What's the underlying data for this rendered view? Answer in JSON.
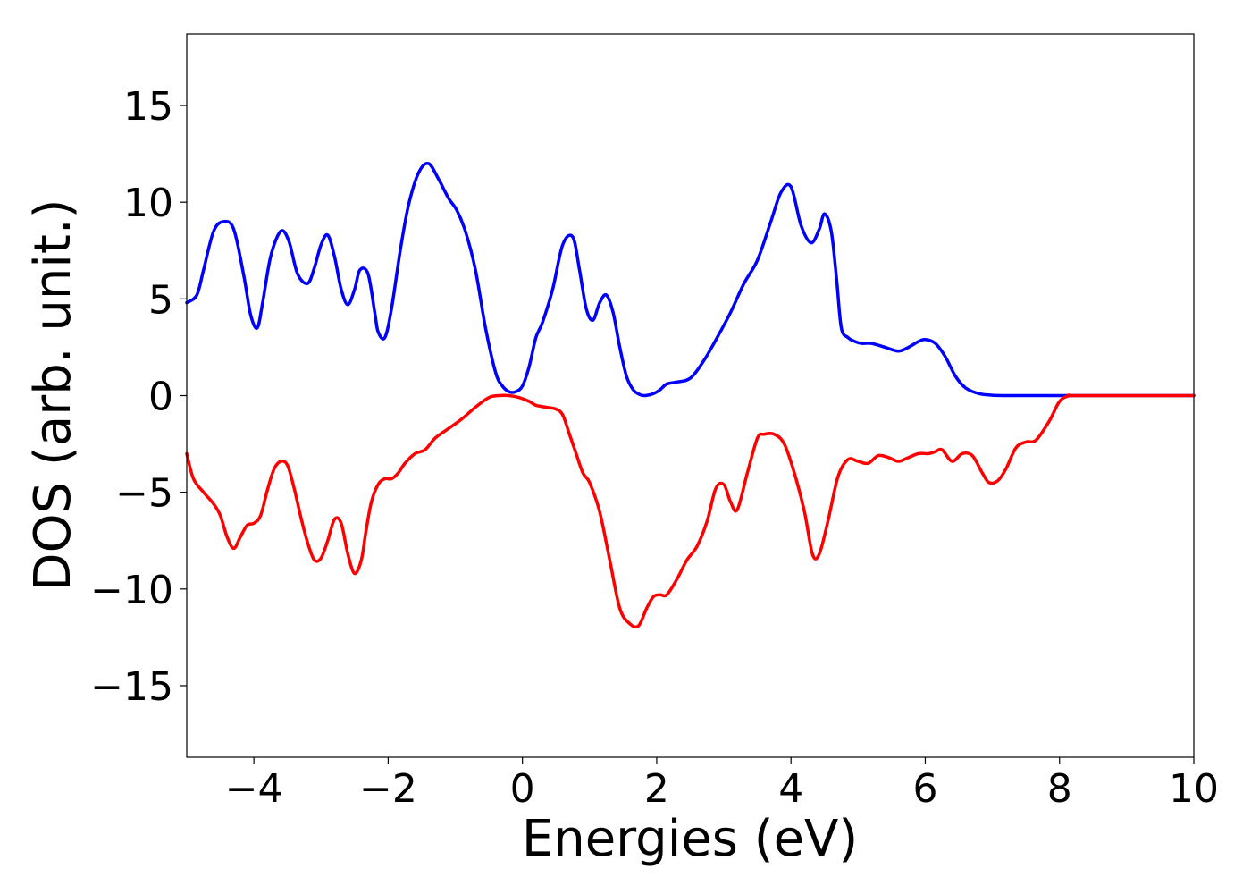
{
  "chart_data": {
    "type": "line",
    "title": "",
    "xlabel": "Energies (eV)",
    "ylabel": "DOS (arb. unit.)",
    "xlim": [
      -5,
      10
    ],
    "ylim": [
      -18.7,
      18.7
    ],
    "xticks": [
      -4,
      -2,
      0,
      2,
      4,
      6,
      8,
      10
    ],
    "yticks": [
      -15,
      -10,
      -5,
      0,
      5,
      10,
      15
    ],
    "xtick_labels": [
      "−4",
      "−2",
      "0",
      "2",
      "4",
      "6",
      "8",
      "10"
    ],
    "ytick_labels": [
      "−15",
      "−10",
      "−5",
      "0",
      "5",
      "10",
      "15"
    ],
    "grid": false,
    "legend": false,
    "series": [
      {
        "color": "#0000ff",
        "x": [
          -5.0,
          -4.85,
          -4.75,
          -4.6,
          -4.45,
          -4.3,
          -4.15,
          -4.05,
          -3.95,
          -3.87,
          -3.75,
          -3.6,
          -3.48,
          -3.35,
          -3.2,
          -3.1,
          -3.0,
          -2.9,
          -2.8,
          -2.7,
          -2.6,
          -2.5,
          -2.42,
          -2.3,
          -2.2,
          -2.15,
          -2.05,
          -1.95,
          -1.82,
          -1.7,
          -1.55,
          -1.4,
          -1.25,
          -1.1,
          -0.98,
          -0.85,
          -0.7,
          -0.55,
          -0.4,
          -0.3,
          -0.2,
          -0.1,
          0.0,
          0.1,
          0.2,
          0.3,
          0.45,
          0.6,
          0.75,
          0.85,
          0.95,
          1.05,
          1.15,
          1.25,
          1.35,
          1.45,
          1.55,
          1.65,
          1.75,
          1.83,
          1.95,
          2.05,
          2.15,
          2.3,
          2.5,
          2.7,
          2.9,
          3.1,
          3.3,
          3.5,
          3.7,
          3.85,
          4.0,
          4.15,
          4.3,
          4.42,
          4.5,
          4.6,
          4.68,
          4.75,
          4.85,
          4.95,
          5.05,
          5.2,
          5.4,
          5.6,
          5.75,
          5.9,
          6.0,
          6.15,
          6.3,
          6.45,
          6.6,
          6.8,
          7.0,
          7.3,
          7.6,
          8.0,
          10.0
        ],
        "y": [
          4.8,
          5.2,
          6.5,
          8.5,
          9.0,
          8.6,
          6.2,
          4.2,
          3.5,
          4.8,
          7.2,
          8.5,
          8.0,
          6.3,
          5.8,
          6.6,
          7.8,
          8.3,
          7.2,
          5.5,
          4.7,
          5.5,
          6.5,
          6.3,
          4.3,
          3.3,
          3.0,
          4.5,
          7.5,
          9.8,
          11.5,
          12.0,
          11.2,
          10.2,
          9.6,
          8.5,
          6.5,
          3.5,
          1.2,
          0.5,
          0.2,
          0.2,
          0.5,
          1.5,
          3.0,
          3.8,
          5.5,
          7.8,
          8.2,
          6.5,
          4.5,
          3.9,
          4.8,
          5.2,
          4.3,
          2.5,
          1.0,
          0.3,
          0.05,
          0.0,
          0.1,
          0.3,
          0.6,
          0.7,
          0.9,
          1.8,
          3.0,
          4.3,
          5.8,
          7.0,
          9.0,
          10.5,
          10.8,
          8.8,
          7.9,
          8.6,
          9.4,
          8.5,
          6.0,
          3.5,
          3.0,
          2.8,
          2.7,
          2.7,
          2.5,
          2.3,
          2.5,
          2.8,
          2.9,
          2.7,
          2.0,
          1.0,
          0.4,
          0.1,
          0.02,
          0.0,
          0.0,
          0.0,
          0.0
        ]
      },
      {
        "color": "#ff0000",
        "x": [
          -5.0,
          -4.9,
          -4.75,
          -4.6,
          -4.5,
          -4.4,
          -4.3,
          -4.2,
          -4.1,
          -4.0,
          -3.9,
          -3.8,
          -3.7,
          -3.6,
          -3.5,
          -3.4,
          -3.3,
          -3.2,
          -3.1,
          -3.0,
          -2.9,
          -2.8,
          -2.7,
          -2.6,
          -2.5,
          -2.4,
          -2.33,
          -2.25,
          -2.15,
          -2.05,
          -1.95,
          -1.85,
          -1.75,
          -1.6,
          -1.45,
          -1.3,
          -1.1,
          -0.9,
          -0.7,
          -0.5,
          -0.35,
          -0.2,
          -0.05,
          0.1,
          0.2,
          0.35,
          0.5,
          0.6,
          0.7,
          0.8,
          0.9,
          1.0,
          1.15,
          1.3,
          1.45,
          1.6,
          1.73,
          1.85,
          1.95,
          2.05,
          2.15,
          2.3,
          2.45,
          2.6,
          2.75,
          2.88,
          3.0,
          3.1,
          3.2,
          3.35,
          3.5,
          3.6,
          3.75,
          3.9,
          4.05,
          4.2,
          4.32,
          4.42,
          4.55,
          4.7,
          4.85,
          5.0,
          5.15,
          5.3,
          5.45,
          5.6,
          5.75,
          5.9,
          6.05,
          6.15,
          6.25,
          6.4,
          6.55,
          6.7,
          6.85,
          6.95,
          7.08,
          7.2,
          7.35,
          7.5,
          7.65,
          7.85,
          8.0,
          8.15,
          8.3,
          10.0
        ],
        "y": [
          -3.0,
          -4.3,
          -5.0,
          -5.6,
          -6.2,
          -7.3,
          -7.9,
          -7.3,
          -6.7,
          -6.6,
          -6.2,
          -4.9,
          -3.8,
          -3.4,
          -3.6,
          -4.8,
          -6.3,
          -7.6,
          -8.5,
          -8.4,
          -7.5,
          -6.4,
          -6.6,
          -8.2,
          -9.2,
          -8.5,
          -7.0,
          -5.5,
          -4.6,
          -4.3,
          -4.3,
          -4.0,
          -3.5,
          -3.0,
          -2.8,
          -2.2,
          -1.7,
          -1.2,
          -0.6,
          -0.1,
          0.0,
          0.0,
          -0.1,
          -0.3,
          -0.5,
          -0.6,
          -0.7,
          -1.0,
          -2.0,
          -3.0,
          -4.0,
          -4.5,
          -6.0,
          -8.5,
          -11.0,
          -11.8,
          -11.9,
          -11.0,
          -10.4,
          -10.3,
          -10.3,
          -9.5,
          -8.5,
          -7.8,
          -6.5,
          -4.8,
          -4.6,
          -5.5,
          -5.9,
          -4.0,
          -2.2,
          -2.0,
          -2.0,
          -2.5,
          -4.0,
          -6.0,
          -8.2,
          -8.2,
          -6.5,
          -4.2,
          -3.3,
          -3.4,
          -3.5,
          -3.1,
          -3.2,
          -3.4,
          -3.2,
          -3.0,
          -3.0,
          -2.9,
          -2.8,
          -3.4,
          -3.0,
          -3.1,
          -4.0,
          -4.5,
          -4.4,
          -3.8,
          -2.7,
          -2.4,
          -2.3,
          -1.3,
          -0.3,
          0.0,
          0.0,
          0.0
        ]
      }
    ]
  }
}
